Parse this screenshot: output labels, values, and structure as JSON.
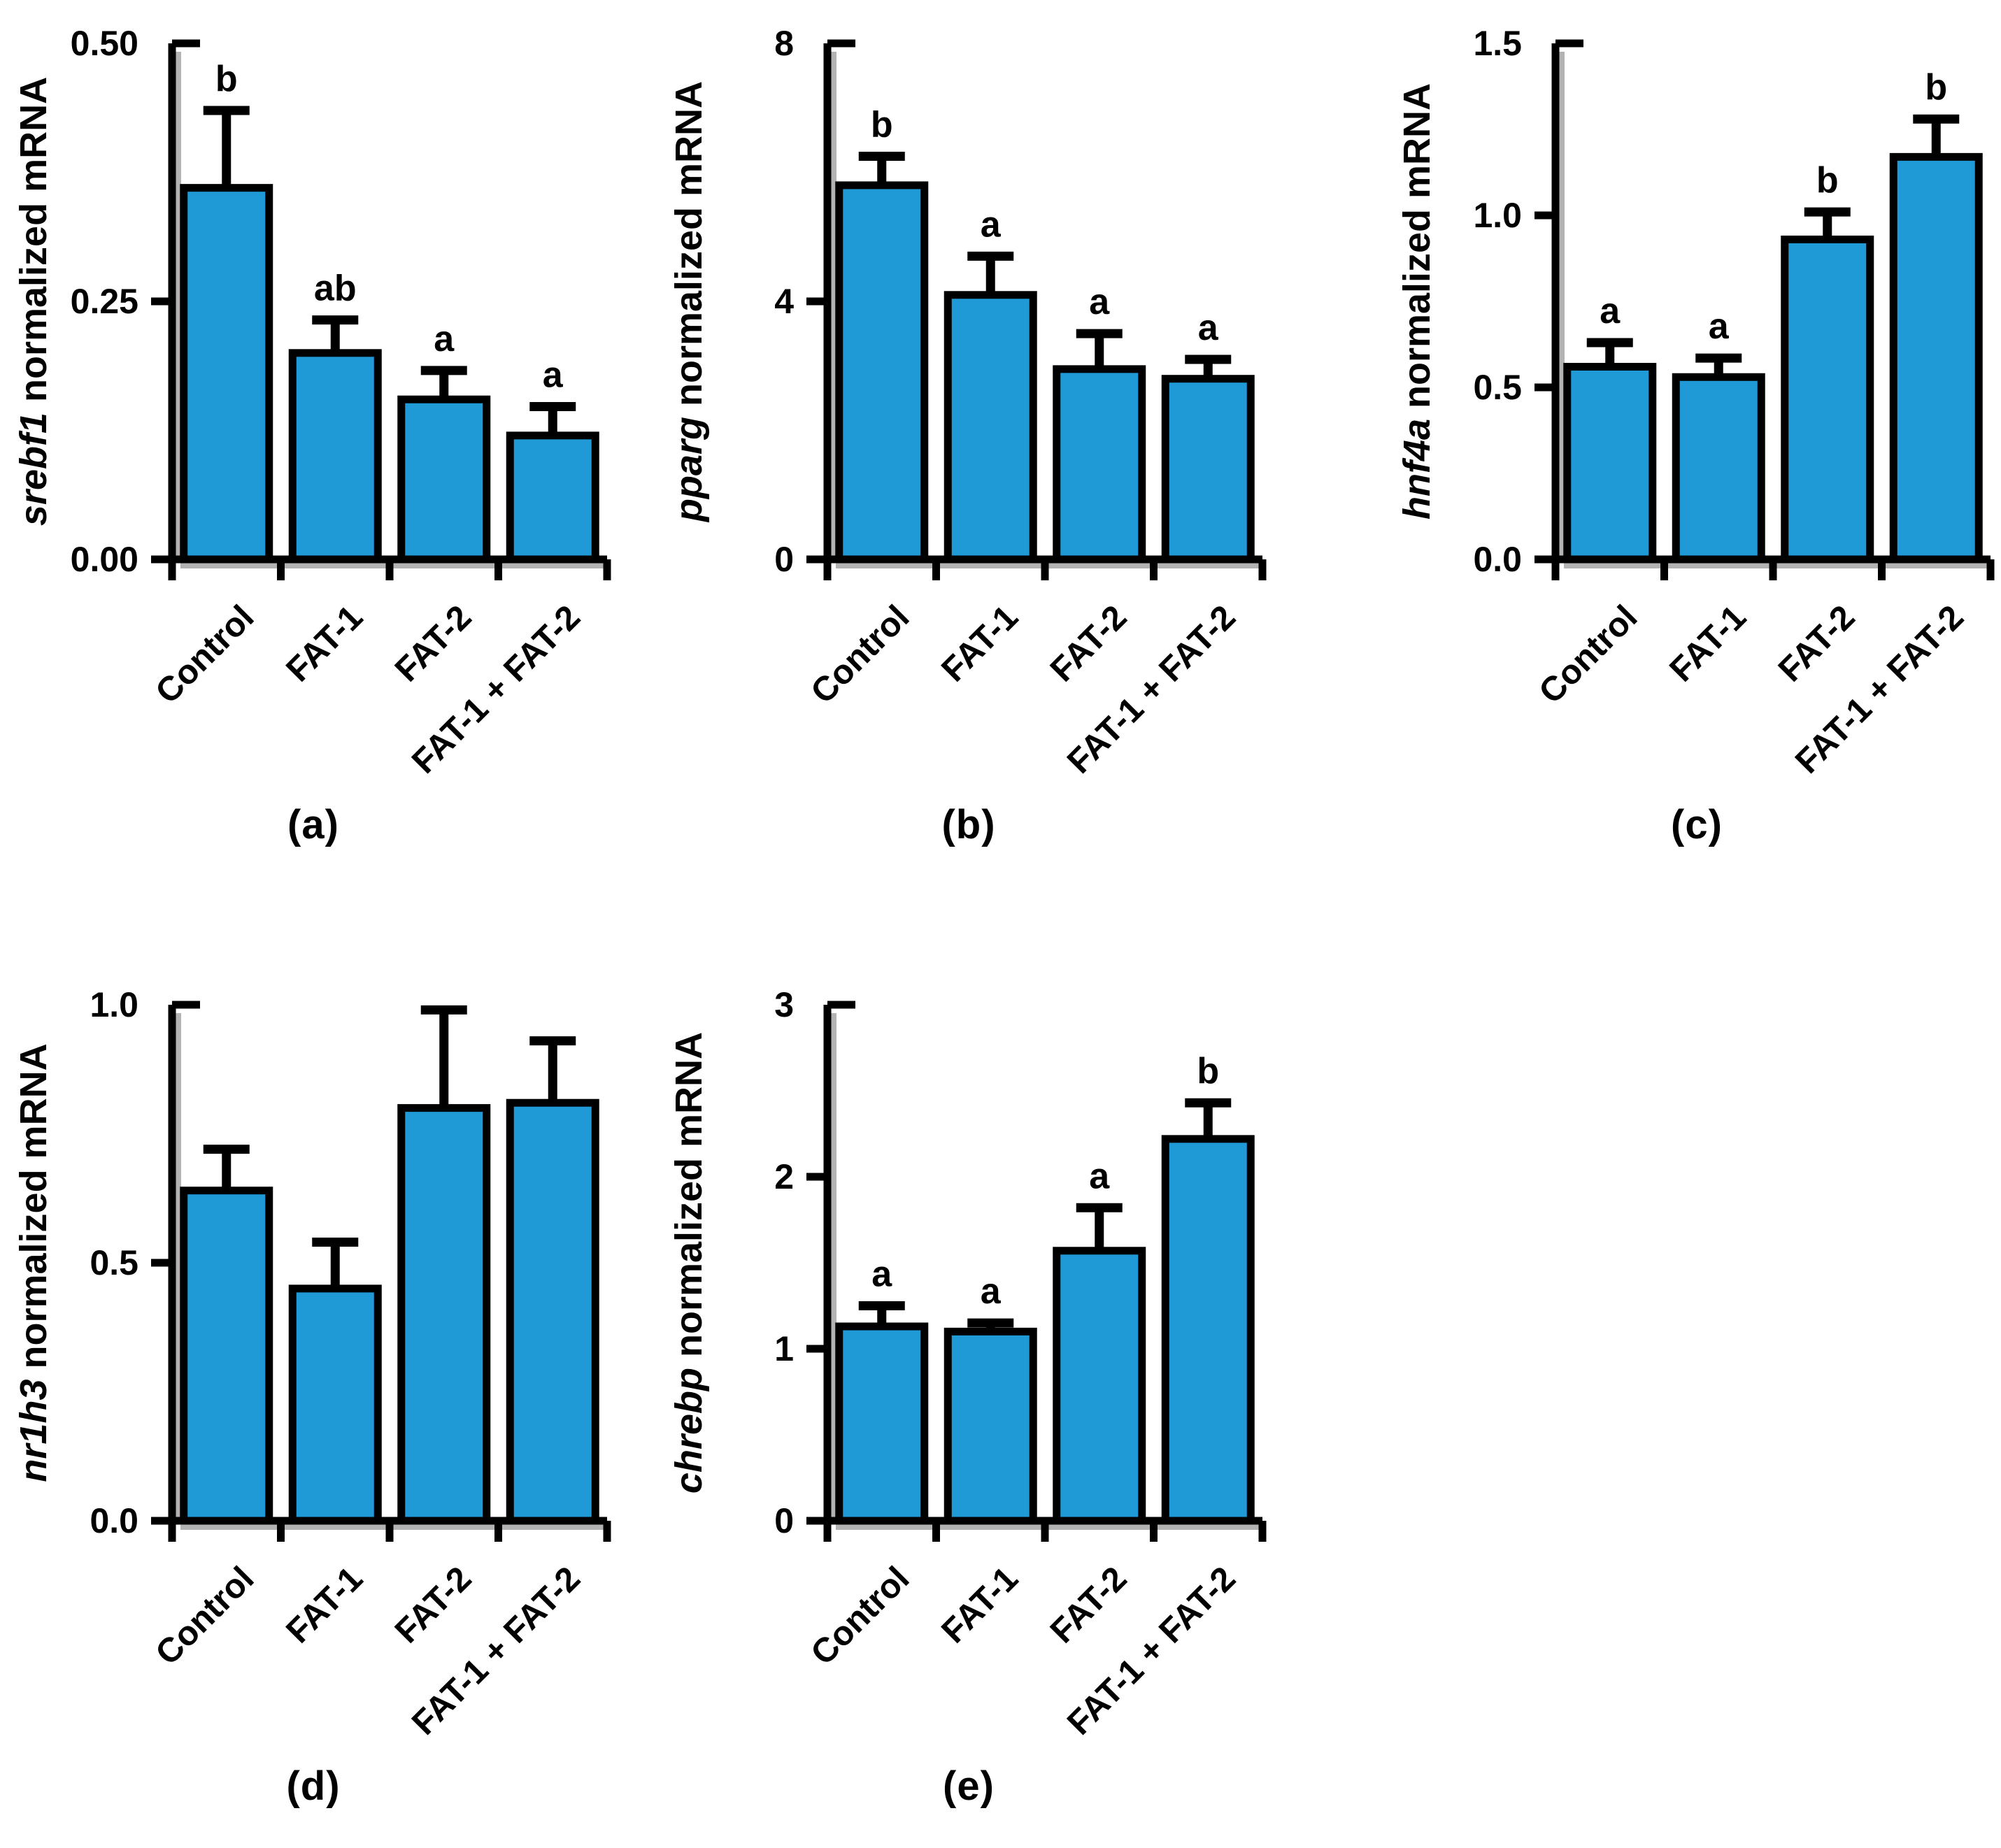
{
  "style": {
    "bar_fill": "#1f9ad7",
    "axis_color": "#000000",
    "shadow_color": "#b3b3b3",
    "text_color": "#000000"
  },
  "chart_data": [
    {
      "id": "a",
      "type": "bar",
      "panel_label": "(a)",
      "ylabel_gene": "srebf1",
      "ylabel_text": "normalized mRNA",
      "categories": [
        "Control",
        "FAT-1",
        "FAT-2",
        "FAT-1 + FAT-2"
      ],
      "values": [
        0.36,
        0.2,
        0.155,
        0.12
      ],
      "errors_upper": [
        0.075,
        0.032,
        0.028,
        0.028
      ],
      "sig_letters": [
        "b",
        "ab",
        "a",
        "a"
      ],
      "ylim": [
        0,
        0.5
      ],
      "yticks": [
        0,
        0.25,
        0.5
      ],
      "ytick_labels": [
        "0.00",
        "0.25",
        "0.50"
      ],
      "grid": false,
      "legend": "none"
    },
    {
      "id": "b",
      "type": "bar",
      "panel_label": "(b)",
      "ylabel_gene": "pparg",
      "ylabel_text": "normalized mRNA",
      "categories": [
        "Control",
        "FAT-1",
        "FAT-2",
        "FAT-1 + FAT-2"
      ],
      "values": [
        5.8,
        4.1,
        2.95,
        2.8
      ],
      "errors_upper": [
        0.45,
        0.6,
        0.55,
        0.3
      ],
      "sig_letters": [
        "b",
        "a",
        "a",
        "a"
      ],
      "ylim": [
        0,
        8
      ],
      "yticks": [
        0,
        4,
        8
      ],
      "ytick_labels": [
        "0",
        "4",
        "8"
      ],
      "grid": false,
      "legend": "none"
    },
    {
      "id": "c",
      "type": "bar",
      "panel_label": "(c)",
      "ylabel_gene": "hnf4a",
      "ylabel_text": "normalized mRNA",
      "categories": [
        "Control",
        "FAT-1",
        "FAT-2",
        "FAT-1 + FAT-2"
      ],
      "values": [
        0.56,
        0.53,
        0.93,
        1.17
      ],
      "errors_upper": [
        0.07,
        0.055,
        0.08,
        0.11
      ],
      "sig_letters": [
        "a",
        "a",
        "b",
        "b"
      ],
      "ylim": [
        0,
        1.5
      ],
      "yticks": [
        0,
        0.5,
        1.0,
        1.5
      ],
      "ytick_labels": [
        "0.0",
        "0.5",
        "1.0",
        "1.5"
      ],
      "grid": false,
      "legend": "none"
    },
    {
      "id": "d",
      "type": "bar",
      "panel_label": "(d)",
      "ylabel_gene": "nr1h3",
      "ylabel_text": "normalized mRNA",
      "categories": [
        "Control",
        "FAT-1",
        "FAT-2",
        "FAT-1 + FAT-2"
      ],
      "values": [
        0.64,
        0.45,
        0.8,
        0.81
      ],
      "errors_upper": [
        0.08,
        0.09,
        0.19,
        0.12
      ],
      "sig_letters": [
        "",
        "",
        "",
        ""
      ],
      "ylim": [
        0,
        1.0
      ],
      "yticks": [
        0,
        0.5,
        1.0
      ],
      "ytick_labels": [
        "0.0",
        "0.5",
        "1.0"
      ],
      "grid": false,
      "legend": "none"
    },
    {
      "id": "e",
      "type": "bar",
      "panel_label": "(e)",
      "ylabel_gene": "chrebp",
      "ylabel_text": "normalized mRNA",
      "categories": [
        "Control",
        "FAT-1",
        "FAT-2",
        "FAT-1 + FAT-2"
      ],
      "values": [
        1.13,
        1.1,
        1.57,
        2.22
      ],
      "errors_upper": [
        0.12,
        0.05,
        0.25,
        0.21
      ],
      "sig_letters": [
        "a",
        "a",
        "a",
        "b"
      ],
      "ylim": [
        0,
        3
      ],
      "yticks": [
        0,
        1,
        2,
        3
      ],
      "ytick_labels": [
        "0",
        "1",
        "2",
        "3"
      ],
      "grid": false,
      "legend": "none"
    }
  ]
}
